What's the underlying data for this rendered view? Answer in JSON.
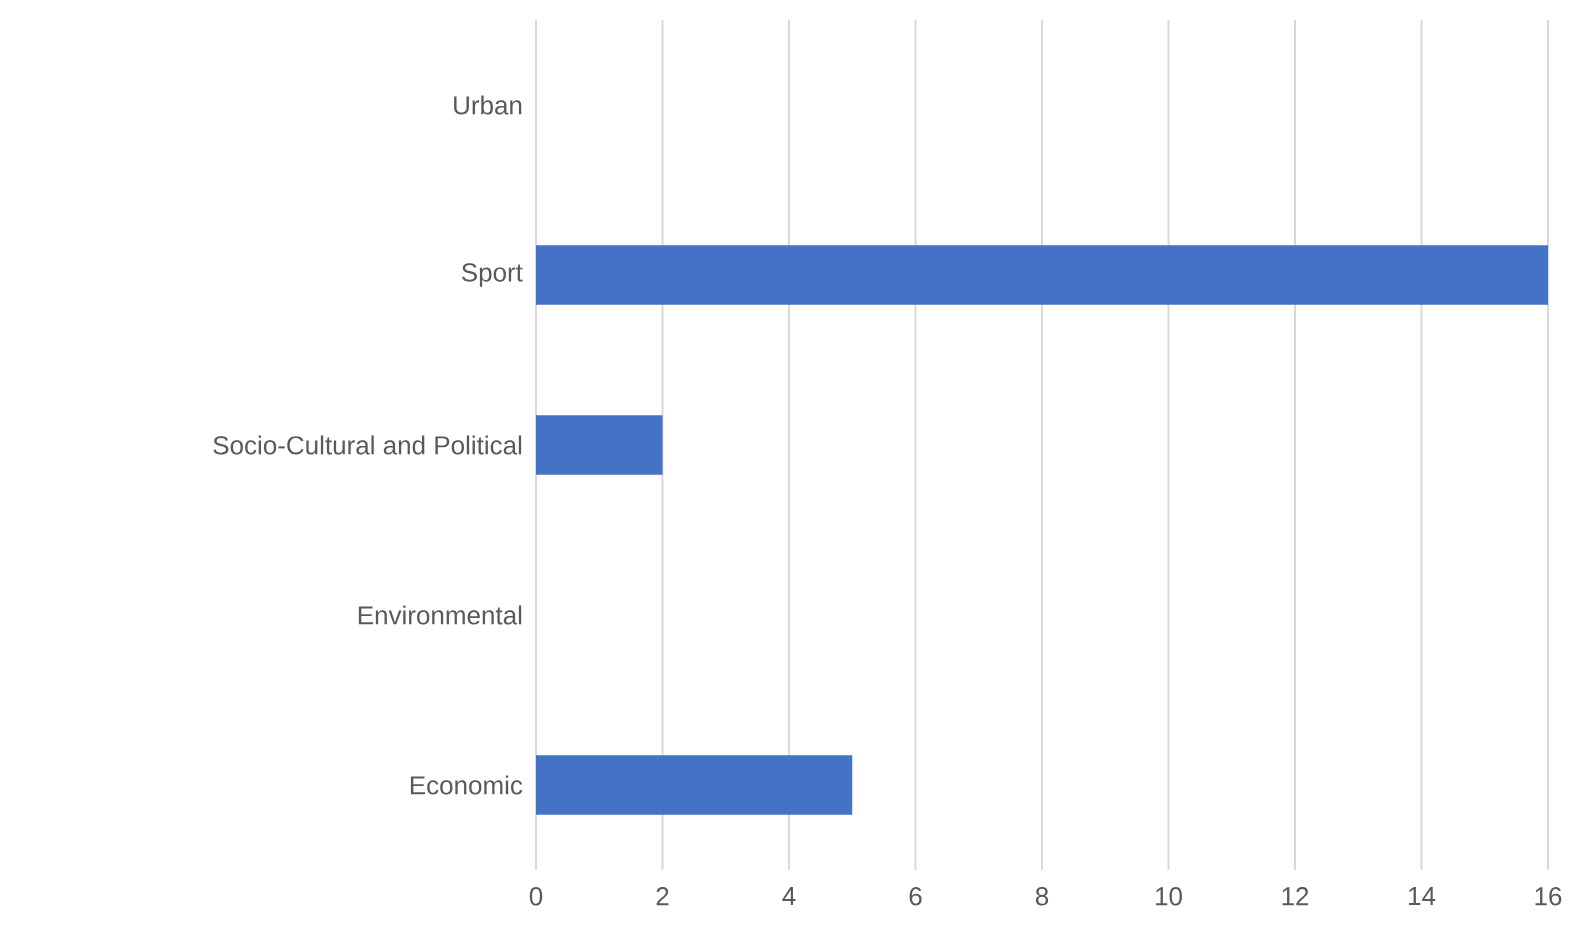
{
  "chart_data": {
    "type": "bar",
    "orientation": "horizontal",
    "categories": [
      "Urban",
      "Sport",
      "Socio-Cultural and Political",
      "Environmental",
      "Economic"
    ],
    "values": [
      0,
      16,
      2,
      0,
      5
    ],
    "color": "#4472c4",
    "xlim": [
      0,
      16
    ],
    "xticks": [
      0,
      2,
      4,
      6,
      8,
      10,
      12,
      14,
      16
    ],
    "grid": "x"
  }
}
